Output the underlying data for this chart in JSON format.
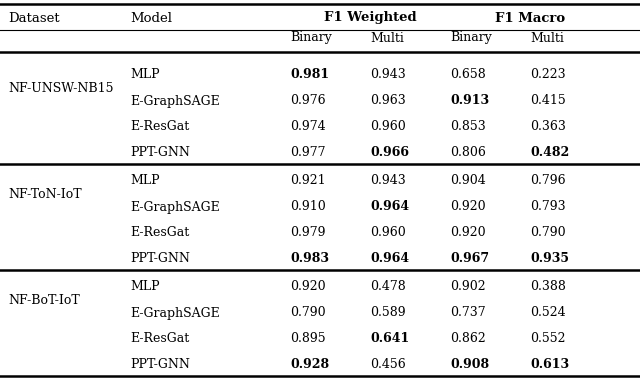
{
  "datasets": [
    "NF-UNSW-NB15",
    "NF-ToN-IoT",
    "NF-BoT-IoT"
  ],
  "models": [
    "MLP",
    "E-GraphSAGE",
    "E-ResGat",
    "PPT-GNN"
  ],
  "data": {
    "NF-UNSW-NB15": {
      "MLP": {
        "vals": [
          "0.981",
          "0.943",
          "0.658",
          "0.223"
        ],
        "bold": [
          true,
          false,
          false,
          false
        ]
      },
      "E-GraphSAGE": {
        "vals": [
          "0.976",
          "0.963",
          "0.913",
          "0.415"
        ],
        "bold": [
          false,
          false,
          true,
          false
        ]
      },
      "E-ResGat": {
        "vals": [
          "0.974",
          "0.960",
          "0.853",
          "0.363"
        ],
        "bold": [
          false,
          false,
          false,
          false
        ]
      },
      "PPT-GNN": {
        "vals": [
          "0.977",
          "0.966",
          "0.806",
          "0.482"
        ],
        "bold": [
          false,
          true,
          false,
          true
        ]
      }
    },
    "NF-ToN-IoT": {
      "MLP": {
        "vals": [
          "0.921",
          "0.943",
          "0.904",
          "0.796"
        ],
        "bold": [
          false,
          false,
          false,
          false
        ]
      },
      "E-GraphSAGE": {
        "vals": [
          "0.910",
          "0.964",
          "0.920",
          "0.793"
        ],
        "bold": [
          false,
          true,
          false,
          false
        ]
      },
      "E-ResGat": {
        "vals": [
          "0.979",
          "0.960",
          "0.920",
          "0.790"
        ],
        "bold": [
          false,
          false,
          false,
          false
        ]
      },
      "PPT-GNN": {
        "vals": [
          "0.983",
          "0.964",
          "0.967",
          "0.935"
        ],
        "bold": [
          true,
          true,
          true,
          true
        ]
      }
    },
    "NF-BoT-IoT": {
      "MLP": {
        "vals": [
          "0.920",
          "0.478",
          "0.902",
          "0.388"
        ],
        "bold": [
          false,
          false,
          false,
          false
        ]
      },
      "E-GraphSAGE": {
        "vals": [
          "0.790",
          "0.589",
          "0.737",
          "0.524"
        ],
        "bold": [
          false,
          false,
          false,
          false
        ]
      },
      "E-ResGat": {
        "vals": [
          "0.895",
          "0.641",
          "0.862",
          "0.552"
        ],
        "bold": [
          false,
          true,
          false,
          false
        ]
      },
      "PPT-GNN": {
        "vals": [
          "0.928",
          "0.456",
          "0.908",
          "0.613"
        ],
        "bold": [
          true,
          false,
          true,
          true
        ]
      }
    }
  },
  "bg_color": "#ffffff",
  "font_size": 9.0,
  "header_font_size": 9.5
}
